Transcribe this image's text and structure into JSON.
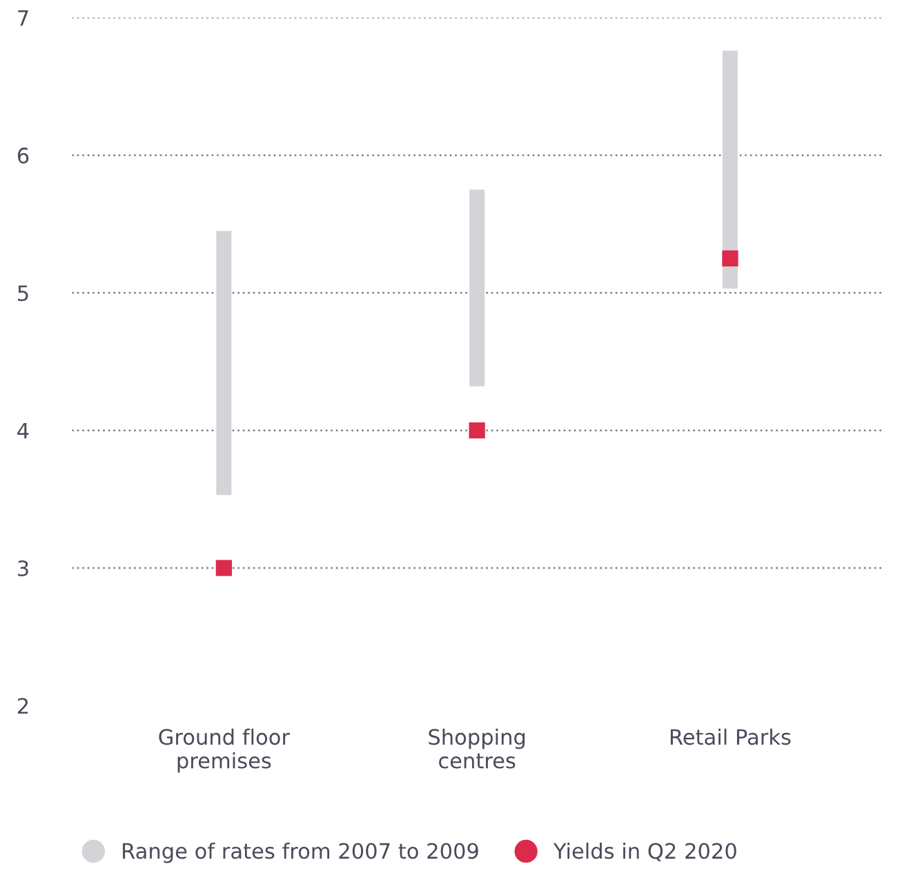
{
  "chart_data": {
    "type": "bar",
    "categories": [
      "Ground floor\npremises",
      "Shopping\ncentres",
      "Retail Parks"
    ],
    "series": [
      {
        "name": "Range of rates from 2007 to 2009",
        "color": "#d3d3d8",
        "base": [
          3.53,
          4.32,
          5.03
        ],
        "values": [
          1.92,
          1.43,
          1.73
        ]
      },
      {
        "name": "Yields in Q2 2020",
        "type": "scatter",
        "color": "#dc2a4b",
        "marker": "square",
        "x": [
          "Ground floor\npremises",
          "Shopping\ncentres",
          "Retail Parks"
        ],
        "values": [
          3.0,
          4.0,
          5.25
        ]
      }
    ],
    "ylim": [
      2,
      7
    ],
    "yticks": [
      2,
      3,
      4,
      5,
      6,
      7
    ],
    "grid": "y",
    "legend": "bottom"
  }
}
